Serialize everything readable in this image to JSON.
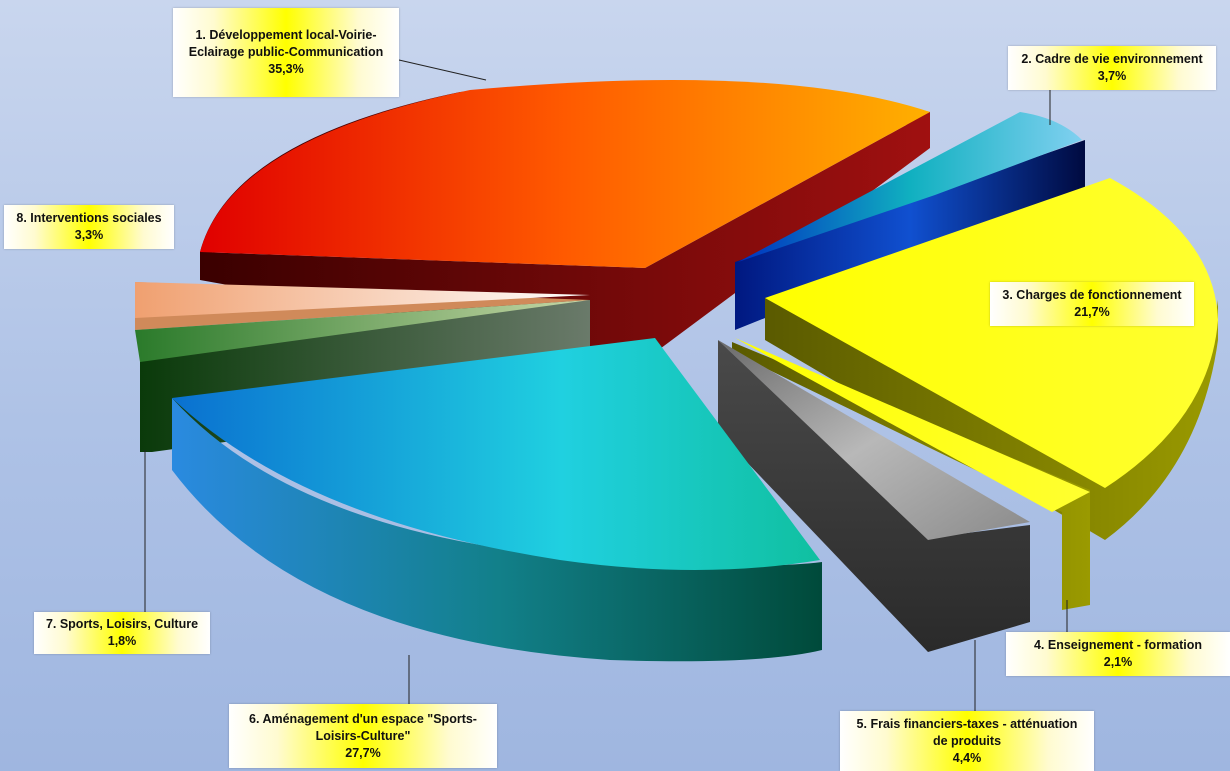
{
  "chart_data": {
    "type": "pie",
    "title": "",
    "labels_position": "outside with leader lines",
    "slices": [
      {
        "category": "1. Développement local-Voirie-Eclairage public-Communication",
        "label_lines": [
          "1. Développement local-Voirie-",
          "Eclairage public-Communication"
        ],
        "value_label": "35,3%",
        "value": 35.3,
        "color": "#f09000"
      },
      {
        "category": "2. Cadre de vie environnement",
        "label_lines": [
          "2. Cadre de vie environnement"
        ],
        "value_label": "3,7%",
        "value": 3.7,
        "color": "#0a2a9a"
      },
      {
        "category": "3. Charges de fonctionnement",
        "label_lines": [
          "3. Charges de fonctionnement"
        ],
        "value_label": "21,7%",
        "value": 21.7,
        "color": "#ffff00"
      },
      {
        "category": "4. Enseignement - formation",
        "label_lines": [
          "4. Enseignement - formation"
        ],
        "value_label": "2,1%",
        "value": 2.1,
        "color": "#ffff20"
      },
      {
        "category": "5. Frais financiers-taxes - atténuation de produits",
        "label_lines": [
          "5. Frais financiers-taxes - atténuation",
          "de produits"
        ],
        "value_label": "4,4%",
        "value": 4.4,
        "color": "#8a8a8a"
      },
      {
        "category": "6. Aménagement d'un espace \"Sports-Loisirs-Culture\"",
        "label_lines": [
          "6. Aménagement d'un espace \"Sports-",
          "Loisirs-Culture\""
        ],
        "value_label": "27,7%",
        "value": 27.7,
        "color": "#1ab0d8"
      },
      {
        "category": "7. Sports, Loisirs, Culture",
        "label_lines": [
          "7. Sports, Loisirs, Culture"
        ],
        "value_label": "1,8%",
        "value": 1.8,
        "color": "#2e7a2e"
      },
      {
        "category": "8. Interventions sociales",
        "label_lines": [
          "8. Interventions sociales"
        ],
        "value_label": "3,3%",
        "value": 3.3,
        "color": "#f4b080"
      }
    ]
  }
}
